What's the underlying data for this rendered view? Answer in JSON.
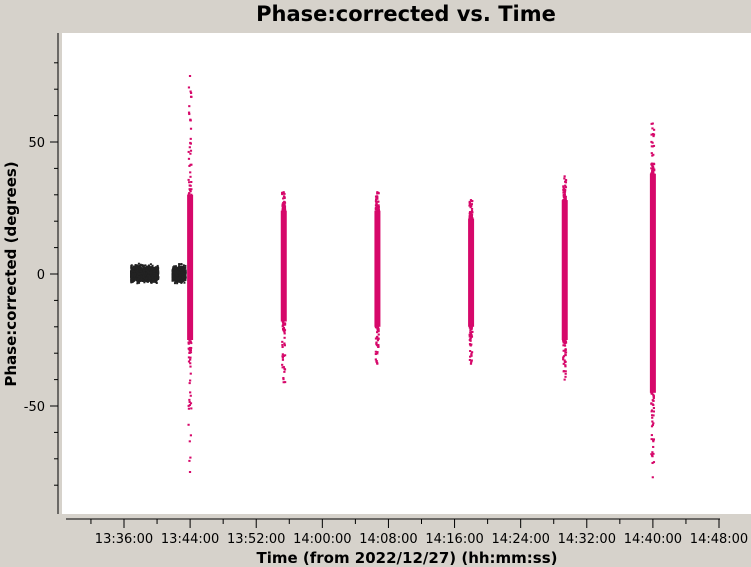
{
  "chart_data": {
    "type": "scatter",
    "title": "Phase:corrected vs. Time",
    "xlabel": "Time (from 2022/12/27) (hh:mm:ss)",
    "ylabel": "Phase:corrected (degrees)",
    "xlim": [
      "13:31:00",
      "13:48:00"
    ],
    "ylim": [
      -88,
      90
    ],
    "x_ticks": [
      "13:36:00",
      "13:44:00",
      "13:52:00",
      "14:00:00",
      "14:08:00",
      "14:16:00",
      "14:24:00",
      "14:32:00",
      "14:40:00",
      "14:48:00"
    ],
    "y_ticks": [
      50,
      0,
      -50
    ],
    "grid": false,
    "colors": {
      "reference_series": "#222222",
      "corrected_series": "#d6086a",
      "plot_background": "#ffffff",
      "frame_background": "#d6d2cb"
    },
    "series": [
      {
        "color": "#222222",
        "clusters": [
          {
            "time": "13:38:30",
            "time_span_min": 3.3,
            "y_min": -2,
            "y_max": 2,
            "y_outer_min": -5,
            "y_outer_max": 4,
            "n": 1400
          },
          {
            "time": "13:42:40",
            "time_span_min": 1.6,
            "y_min": -2,
            "y_max": 2,
            "y_outer_min": -6,
            "y_outer_max": 4,
            "n": 700
          }
        ]
      },
      {
        "color": "#d6086a",
        "clusters": [
          {
            "time": "13:44:00",
            "y_core_min": -25,
            "y_core_max": 30,
            "y_min": -75,
            "y_max": 75
          },
          {
            "time": "13:55:20",
            "y_core_min": -18,
            "y_core_max": 24,
            "y_min": -41,
            "y_max": 31
          },
          {
            "time": "14:06:40",
            "y_core_min": -20,
            "y_core_max": 24,
            "y_min": -34,
            "y_max": 31
          },
          {
            "time": "14:18:00",
            "y_core_min": -20,
            "y_core_max": 21,
            "y_min": -34,
            "y_max": 28
          },
          {
            "time": "14:29:20",
            "y_core_min": -25,
            "y_core_max": 28,
            "y_min": -40,
            "y_max": 37
          },
          {
            "time": "14:40:00",
            "y_core_min": -45,
            "y_core_max": 38,
            "y_min": -77,
            "y_max": 57
          }
        ]
      }
    ]
  }
}
